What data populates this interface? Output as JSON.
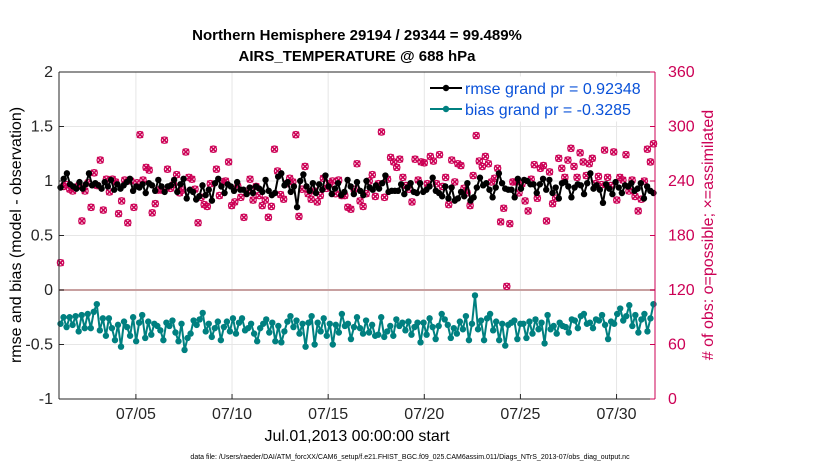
{
  "chart_data": {
    "type": "line",
    "title": "Northern Hemisphere 29194 / 29344 = 99.489%",
    "subtitle": "AIRS_TEMPERATURE @ 688 hPa",
    "xlabel": "Jul.01,2013 00:00:00 start",
    "ylabel_left": "rmse and bias (model - observation)",
    "ylabel_right": "# of obs: o=possible; ×=assimilated",
    "footnote": "data file: /Users/raeder/DAI/ATM_forcXX/CAM6_setup/f.e21.FHIST_BGC.f09_025.CAM6assim.011/Diags_NTrS_2013-07/obs_diag_output.nc",
    "xlim": [
      1,
      32
    ],
    "ylim_left": [
      -1,
      2
    ],
    "ylim_right": [
      0,
      360
    ],
    "x_ticks": [
      5,
      10,
      15,
      20,
      25,
      30
    ],
    "x_tick_labels": [
      "07/05",
      "07/10",
      "07/15",
      "07/20",
      "07/25",
      "07/30"
    ],
    "y_ticks_left": [
      -1,
      -0.5,
      0,
      0.5,
      1,
      1.5,
      2
    ],
    "y_tick_labels_left": [
      "-1",
      "-0.5",
      "0",
      "0.5",
      "1",
      "1.5",
      "2"
    ],
    "y_ticks_right": [
      0,
      60,
      120,
      180,
      240,
      300,
      360
    ],
    "y_tick_labels_right": [
      "0",
      "60",
      "120",
      "180",
      "240",
      "300",
      "360"
    ],
    "grid": true,
    "legend_position": "top-right",
    "colors": {
      "rmse": "#000000",
      "bias": "#008080",
      "obs": "#cc0055",
      "zero_line": "#c8a0a0",
      "legend_text": "#0a52d9",
      "grid": "#e6e6e6"
    },
    "series": [
      {
        "name": "rmse grand pr = 0.92348",
        "axis": "left",
        "values": [
          0.94,
          1.02,
          1.07,
          0.97,
          0.95,
          0.93,
          0.99,
          0.93,
          0.97,
          1.07,
          0.96,
          0.98,
          0.96,
          0.93,
          0.99,
          0.95,
          1.01,
          0.92,
          0.97,
          0.93,
          0.96,
          0.99,
          1.02,
          0.91,
          0.95,
          0.94,
          0.97,
          0.89,
          0.98,
          0.96,
          0.91,
          1.01,
          0.95,
          0.9,
          0.95,
          0.96,
          1.01,
          0.9,
          0.97,
          1.02,
          0.84,
          0.92,
          0.9,
          0.83,
          0.86,
          0.96,
          0.87,
          0.92,
          0.82,
          0.98,
          1.02,
          0.95,
          0.89,
          0.97,
          0.95,
          0.91,
          0.99,
          0.92,
          0.92,
          0.88,
          0.94,
          0.89,
          0.95,
          0.93,
          0.9,
          1.01,
          0.91,
          0.87,
          0.89,
          1.04,
          1.07,
          0.96,
          0.99,
          0.9,
          0.95,
          0.76,
          1.0,
          1.06,
          0.95,
          0.91,
          0.98,
          0.89,
          0.97,
          0.92,
          1.05,
          0.95,
          0.88,
          0.93,
          0.98,
          0.87,
          0.9,
          1.01,
          0.95,
          0.88,
          0.99,
          0.91,
          0.87,
          1.0,
          0.94,
          0.92,
          0.96,
          0.93,
          0.98,
          1.05,
          0.9,
          0.91,
          0.91,
          0.91,
          0.97,
          0.88,
          0.94,
          0.98,
          0.9,
          0.89,
          0.98,
          0.9,
          0.92,
          0.95,
          1.03,
          0.91,
          0.89,
          0.86,
          0.95,
          0.84,
          0.94,
          0.82,
          0.84,
          0.9,
          0.86,
          0.98,
          0.82,
          0.85,
          0.94,
          1.03,
          0.96,
          0.98,
          0.92,
          0.85,
          0.94,
          1.07,
          0.98,
          0.93,
          0.92,
          0.92,
          0.85,
          1.02,
          0.93,
          1.01,
          1.0,
          0.97,
          0.97,
          0.89,
          0.97,
          1.02,
          0.92,
          1.01,
          0.89,
          0.94,
          0.84,
          0.98,
          0.99,
          0.95,
          0.85,
          0.94,
          0.97,
          0.96,
          0.88,
          0.98,
          1.07,
          0.93,
          0.96,
          0.92,
          0.8,
          0.97,
          0.93,
          0.88,
          0.99,
          0.94,
          0.89,
          0.96,
          0.95,
          0.98,
          0.91,
          0.93,
          0.98,
          0.84,
          0.95,
          0.91,
          0.89
        ]
      },
      {
        "name": "bias grand pr = -0.3285",
        "axis": "left",
        "values": [
          -0.31,
          -0.25,
          -0.34,
          -0.25,
          -0.32,
          -0.24,
          -0.38,
          -0.23,
          -0.35,
          -0.22,
          -0.35,
          -0.2,
          -0.13,
          -0.37,
          -0.26,
          -0.42,
          -0.26,
          -0.35,
          -0.46,
          -0.32,
          -0.52,
          -0.29,
          -0.34,
          -0.42,
          -0.25,
          -0.47,
          -0.3,
          -0.23,
          -0.44,
          -0.29,
          -0.41,
          -0.31,
          -0.33,
          -0.37,
          -0.46,
          -0.3,
          -0.33,
          -0.28,
          -0.39,
          -0.47,
          -0.31,
          -0.55,
          -0.44,
          -0.4,
          -0.28,
          -0.32,
          -0.27,
          -0.21,
          -0.38,
          -0.31,
          -0.43,
          -0.35,
          -0.29,
          -0.46,
          -0.34,
          -0.29,
          -0.38,
          -0.26,
          -0.4,
          -0.3,
          -0.26,
          -0.37,
          -0.35,
          -0.31,
          -0.4,
          -0.47,
          -0.35,
          -0.31,
          -0.27,
          -0.39,
          -0.3,
          -0.47,
          -0.33,
          -0.48,
          -0.38,
          -0.29,
          -0.24,
          -0.34,
          -0.28,
          -0.4,
          -0.31,
          -0.52,
          -0.3,
          -0.24,
          -0.5,
          -0.3,
          -0.38,
          -0.26,
          -0.42,
          -0.31,
          -0.5,
          -0.32,
          -0.39,
          -0.22,
          -0.33,
          -0.31,
          -0.45,
          -0.34,
          -0.25,
          -0.35,
          -0.4,
          -0.28,
          -0.39,
          -0.32,
          -0.42,
          -0.41,
          -0.25,
          -0.43,
          -0.38,
          -0.33,
          -0.42,
          -0.27,
          -0.33,
          -0.3,
          -0.37,
          -0.29,
          -0.41,
          -0.34,
          -0.3,
          -0.48,
          -0.3,
          -0.41,
          -0.26,
          -0.34,
          -0.45,
          -0.33,
          -0.22,
          -0.27,
          -0.32,
          -0.44,
          -0.35,
          -0.4,
          -0.29,
          -0.36,
          -0.24,
          -0.46,
          -0.31,
          -0.05,
          -0.36,
          -0.28,
          -0.46,
          -0.26,
          -0.22,
          -0.37,
          -0.29,
          -0.46,
          -0.31,
          -0.51,
          -0.32,
          -0.3,
          -0.28,
          -0.45,
          -0.31,
          -0.31,
          -0.44,
          -0.29,
          -0.4,
          -0.27,
          -0.36,
          -0.3,
          -0.49,
          -0.23,
          -0.36,
          -0.33,
          -0.4,
          -0.3,
          -0.33,
          -0.34,
          -0.39,
          -0.27,
          -0.28,
          -0.35,
          -0.24,
          -0.22,
          -0.31,
          -0.3,
          -0.35,
          -0.27,
          -0.28,
          -0.23,
          -0.32,
          -0.45,
          -0.29,
          -0.31,
          -0.22,
          -0.17,
          -0.28,
          -0.24,
          -0.14,
          -0.33,
          -0.23,
          -0.39,
          -0.27,
          -0.22,
          -0.38,
          -0.26,
          -0.13
        ]
      }
    ],
    "obs_counts": {
      "axis": "right",
      "name": "# of obs",
      "values": [
        150,
        234,
        236,
        231,
        229,
        233,
        235,
        196,
        229,
        238,
        211,
        249,
        235,
        263,
        208,
        242,
        228,
        242,
        239,
        204,
        218,
        241,
        194,
        240,
        211,
        238,
        291,
        241,
        255,
        252,
        205,
        215,
        230,
        230,
        285,
        253,
        232,
        236,
        247,
        227,
        230,
        272,
        244,
        242,
        231,
        194,
        222,
        214,
        212,
        237,
        275,
        253,
        224,
        239,
        240,
        261,
        213,
        217,
        234,
        222,
        200,
        229,
        242,
        219,
        234,
        224,
        213,
        219,
        200,
        212,
        275,
        251,
        225,
        220,
        237,
        243,
        239,
        291,
        201,
        231,
        256,
        226,
        220,
        229,
        217,
        224,
        243,
        232,
        237,
        240,
        226,
        241,
        224,
        224,
        211,
        209,
        231,
        259,
        218,
        212,
        226,
        240,
        247,
        223,
        237,
        294,
        222,
        242,
        266,
        261,
        255,
        264,
        244,
        235,
        231,
        217,
        264,
        241,
        261,
        260,
        237,
        267,
        262,
        237,
        269,
        234,
        244,
        214,
        263,
        239,
        259,
        257,
        232,
        227,
        213,
        246,
        290,
        262,
        256,
        267,
        259,
        239,
        243,
        254,
        195,
        210,
        124,
        193,
        239,
        239,
        227,
        237,
        218,
        207,
        242,
        258,
        221,
        254,
        257,
        196,
        250,
        215,
        221,
        265,
        254,
        244,
        263,
        276,
        256,
        244,
        271,
        261,
        246,
        259,
        265,
        237,
        245,
        236,
        274,
        244,
        235,
        272,
        219,
        244,
        241,
        269,
        229,
        241,
        223,
        207,
        220,
        240,
        275,
        261,
        281
      ]
    },
    "legend": [
      {
        "label": "rmse grand pr = 0.92348",
        "series": "rmse"
      },
      {
        "label": "bias grand pr = -0.3285",
        "series": "bias"
      }
    ]
  }
}
